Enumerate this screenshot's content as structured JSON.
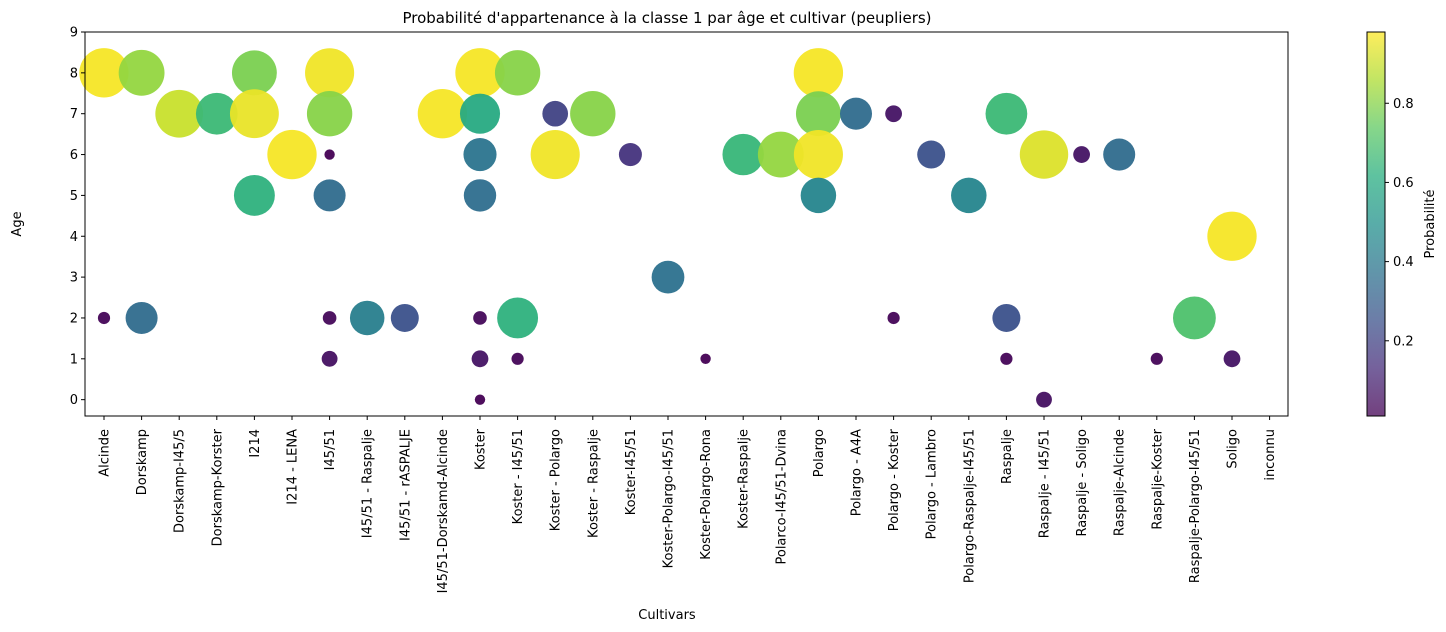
{
  "chart_data": {
    "type": "scatter",
    "title": "Probabilité d'appartenance à la classe 1 par âge et cultivar (peupliers)",
    "xlabel": "Cultivars",
    "ylabel": "Age",
    "ylim": [
      -0.4,
      9
    ],
    "yticks": [
      0,
      1,
      2,
      3,
      4,
      5,
      6,
      7,
      8,
      9
    ],
    "grid": false,
    "categories": [
      "Alcinde",
      "Dorskamp",
      "Dorskamp-I45/5",
      "Dorskamp-Korster",
      "I214",
      "I214 - LENA",
      "I45/51",
      "I45/51 - Raspalje",
      "I45/51 - rASPALJE",
      "I45/51-Dorskamd-Alcinde",
      "Koster",
      "Koster - I45/51",
      "Koster - Polargo",
      "Koster - Raspalje",
      "Koster-I45/51",
      "Koster-Polargo-I45/51",
      "Koster-Polargo-Rona",
      "Koster-Raspalje",
      "Polarco-I45/51-Dvina",
      "Polargo",
      "Polargo - A4A",
      "Polargo - Koster",
      "Polargo - Lambro",
      "Polargo-Raspalje-I45/51",
      "Raspalje",
      "Raspalje - I45/51",
      "Raspalje - Soligo",
      "Raspalje-Alcinde",
      "Raspalje-Koster",
      "Raspalje-Polargo-I45/51",
      "Soligo",
      "inconnu"
    ],
    "points": [
      {
        "x": "Alcinde",
        "age": 8,
        "probability": 0.97
      },
      {
        "x": "Alcinde",
        "age": 2,
        "probability": 0.02
      },
      {
        "x": "Dorskamp",
        "age": 8,
        "probability": 0.82
      },
      {
        "x": "Dorskamp",
        "age": 2,
        "probability": 0.35
      },
      {
        "x": "Dorskamp-I45/5",
        "age": 7,
        "probability": 0.9
      },
      {
        "x": "Dorskamp-Korster",
        "age": 7,
        "probability": 0.66
      },
      {
        "x": "I214",
        "age": 8,
        "probability": 0.78
      },
      {
        "x": "I214",
        "age": 7,
        "probability": 0.95
      },
      {
        "x": "I214",
        "age": 5,
        "probability": 0.63
      },
      {
        "x": "I214 - LENA",
        "age": 6,
        "probability": 0.97
      },
      {
        "x": "I45/51",
        "age": 8,
        "probability": 0.96
      },
      {
        "x": "I45/51",
        "age": 7,
        "probability": 0.8
      },
      {
        "x": "I45/51",
        "age": 6,
        "probability": 0.01
      },
      {
        "x": "I45/51",
        "age": 5,
        "probability": 0.35
      },
      {
        "x": "I45/51",
        "age": 2,
        "probability": 0.03
      },
      {
        "x": "I45/51",
        "age": 1,
        "probability": 0.05
      },
      {
        "x": "I45/51 - Raspalje",
        "age": 2,
        "probability": 0.42
      },
      {
        "x": "I45/51 - rASPALJE",
        "age": 2,
        "probability": 0.25
      },
      {
        "x": "I45/51-Dorskamd-Alcinde",
        "age": 7,
        "probability": 0.97
      },
      {
        "x": "Koster",
        "age": 8,
        "probability": 0.97
      },
      {
        "x": "Koster",
        "age": 7,
        "probability": 0.6
      },
      {
        "x": "Koster",
        "age": 6,
        "probability": 0.38
      },
      {
        "x": "Koster",
        "age": 5,
        "probability": 0.36
      },
      {
        "x": "Koster",
        "age": 2,
        "probability": 0.03
      },
      {
        "x": "Koster",
        "age": 1,
        "probability": 0.06
      },
      {
        "x": "Koster",
        "age": 0,
        "probability": 0.01
      },
      {
        "x": "Koster - I45/51",
        "age": 8,
        "probability": 0.8
      },
      {
        "x": "Koster - I45/51",
        "age": 2,
        "probability": 0.63
      },
      {
        "x": "Koster - I45/51",
        "age": 1,
        "probability": 0.02
      },
      {
        "x": "Koster - Polargo",
        "age": 7,
        "probability": 0.2
      },
      {
        "x": "Koster - Polargo",
        "age": 6,
        "probability": 0.96
      },
      {
        "x": "Koster - Raspalje",
        "age": 7,
        "probability": 0.8
      },
      {
        "x": "Koster-I45/51",
        "age": 6,
        "probability": 0.15
      },
      {
        "x": "Koster-Polargo-I45/51",
        "age": 3,
        "probability": 0.37
      },
      {
        "x": "Koster-Polargo-Rona",
        "age": 1,
        "probability": 0.01
      },
      {
        "x": "Koster-Raspalje",
        "age": 6,
        "probability": 0.65
      },
      {
        "x": "Polarco-I45/51-Dvina",
        "age": 6,
        "probability": 0.82
      },
      {
        "x": "Polargo",
        "age": 8,
        "probability": 0.97
      },
      {
        "x": "Polargo",
        "age": 7,
        "probability": 0.78
      },
      {
        "x": "Polargo",
        "age": 6,
        "probability": 0.96
      },
      {
        "x": "Polargo",
        "age": 5,
        "probability": 0.45
      },
      {
        "x": "Polargo - A4A",
        "age": 7,
        "probability": 0.35
      },
      {
        "x": "Polargo - Koster",
        "age": 7,
        "probability": 0.06
      },
      {
        "x": "Polargo - Koster",
        "age": 2,
        "probability": 0.02
      },
      {
        "x": "Polargo - Lambro",
        "age": 6,
        "probability": 0.25
      },
      {
        "x": "Polargo-Raspalje-I45/51",
        "age": 5,
        "probability": 0.45
      },
      {
        "x": "Raspalje",
        "age": 7,
        "probability": 0.66
      },
      {
        "x": "Raspalje",
        "age": 2,
        "probability": 0.25
      },
      {
        "x": "Raspalje",
        "age": 1,
        "probability": 0.02
      },
      {
        "x": "Raspalje - I45/51",
        "age": 6,
        "probability": 0.93
      },
      {
        "x": "Raspalje - I45/51",
        "age": 0,
        "probability": 0.05
      },
      {
        "x": "Raspalje - Soligo",
        "age": 6,
        "probability": 0.06
      },
      {
        "x": "Raspalje-Alcinde",
        "age": 6,
        "probability": 0.35
      },
      {
        "x": "Raspalje-Koster",
        "age": 1,
        "probability": 0.02
      },
      {
        "x": "Raspalje-Polargo-I45/51",
        "age": 2,
        "probability": 0.7
      },
      {
        "x": "Soligo",
        "age": 4,
        "probability": 0.97
      },
      {
        "x": "Soligo",
        "age": 1,
        "probability": 0.06
      }
    ],
    "size_encoding": "probability",
    "color_encoding": "probability",
    "colormap": "viridis",
    "colorbar": {
      "label": "Probabilité",
      "range": [
        0.01,
        0.98
      ],
      "ticks": [
        0.2,
        0.4,
        0.6,
        0.8
      ],
      "tick_labels": [
        "0.2",
        "0.4",
        "0.6",
        "0.8"
      ]
    }
  }
}
